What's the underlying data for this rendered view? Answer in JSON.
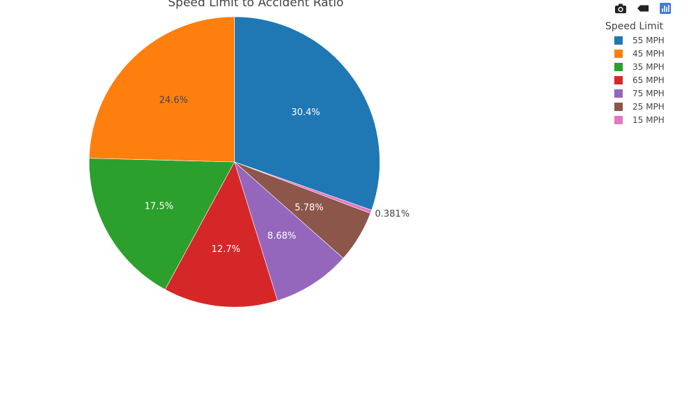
{
  "chart_data": {
    "type": "pie",
    "title": "Speed Limit to Accident Ratio",
    "legend_title": "Speed Limit",
    "legend_placement": "top-right",
    "slices": [
      {
        "label": "55 MPH",
        "percent": 30.4,
        "text": "30.4%",
        "color": "#1f77b4",
        "text_color": "#ffffff"
      },
      {
        "label": "15 MPH",
        "percent": 0.381,
        "text": "0.381%",
        "color": "#e377c2",
        "text_color": "#444444"
      },
      {
        "label": "25 MPH",
        "percent": 5.78,
        "text": "5.78%",
        "color": "#8c564b",
        "text_color": "#ffffff"
      },
      {
        "label": "75 MPH",
        "percent": 8.68,
        "text": "8.68%",
        "color": "#9467bd",
        "text_color": "#ffffff"
      },
      {
        "label": "65 MPH",
        "percent": 12.7,
        "text": "12.7%",
        "color": "#d62728",
        "text_color": "#ffffff"
      },
      {
        "label": "35 MPH",
        "percent": 17.5,
        "text": "17.5%",
        "color": "#2ca02c",
        "text_color": "#ffffff"
      },
      {
        "label": "45 MPH",
        "percent": 24.6,
        "text": "24.6%",
        "color": "#ff7f0e",
        "text_color": "#444444"
      }
    ],
    "legend_order": [
      "55 MPH",
      "45 MPH",
      "35 MPH",
      "65 MPH",
      "75 MPH",
      "25 MPH",
      "15 MPH"
    ]
  },
  "modebar": {
    "buttons": [
      "camera-icon",
      "pan-icon",
      "plotly-logo-icon"
    ]
  }
}
